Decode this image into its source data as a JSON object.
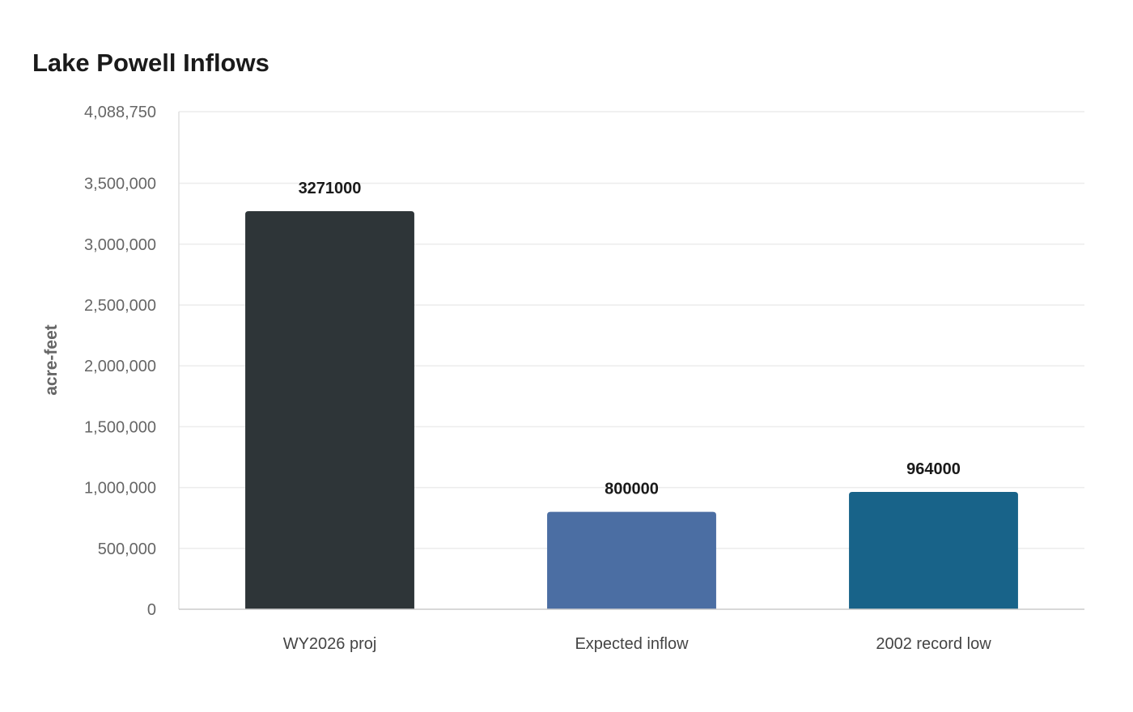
{
  "chart_data": {
    "type": "bar",
    "title": "Lake Powell Inflows",
    "xlabel": "",
    "ylabel": "acre-feet",
    "categories": [
      "WY2026 proj",
      "Expected inflow",
      "2002 record low"
    ],
    "values": [
      3271000,
      800000,
      964000
    ],
    "data_labels": [
      "3271000",
      "800000",
      "964000"
    ],
    "bar_colors": [
      "#2e3538",
      "#4b6ea3",
      "#186389"
    ],
    "ylim": [
      0,
      4088750
    ],
    "yticks": [
      0,
      500000,
      1000000,
      1500000,
      2000000,
      2500000,
      3000000,
      3500000,
      4088750
    ],
    "ytick_labels": [
      "0",
      "500,000",
      "1,000,000",
      "1,500,000",
      "2,000,000",
      "2,500,000",
      "3,000,000",
      "3,500,000",
      "4,088,750"
    ],
    "grid": true,
    "legend": "none"
  }
}
